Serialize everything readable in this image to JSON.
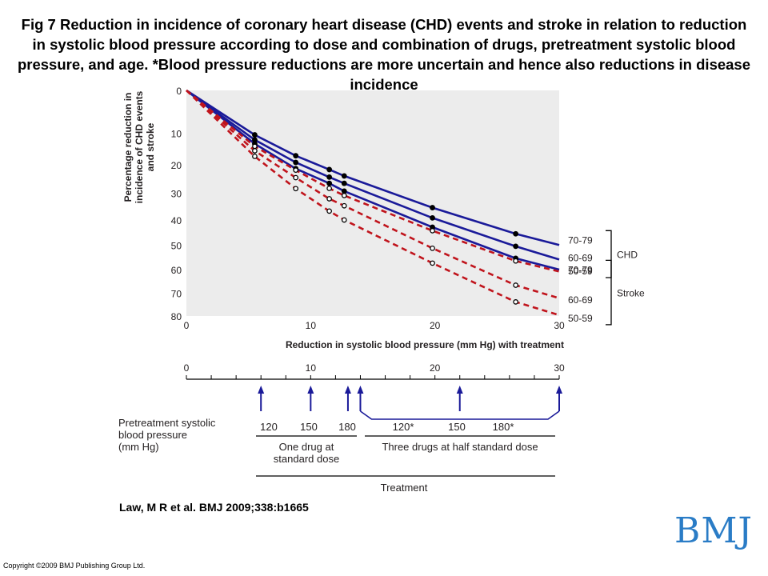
{
  "title": "Fig 7 Reduction in incidence of coronary heart disease (CHD) events and stroke in relation to reduction in systolic blood pressure according to dose and combination of drugs, pretreatment systolic blood pressure, and age. *Blood pressure reductions are more uncertain and hence also reductions in disease incidence",
  "citation": "Law, M R et al. BMJ 2009;338:b1665",
  "copyright": "Copyright ©2009 BMJ Publishing Group Ltd.",
  "logo_text": "BMJ",
  "colors": {
    "chd": "#1a1a99",
    "stroke": "#c0141c",
    "text": "#231f20",
    "logo": "#2a7cc6"
  },
  "chart_data": {
    "type": "line",
    "xlabel": "Reduction in systolic blood pressure (mm Hg) with treatment",
    "ylabel": [
      "Percentage reduction in",
      "incidence of CHD events",
      "and stroke"
    ],
    "xlim": [
      0,
      30
    ],
    "ylim": [
      0,
      80
    ],
    "x_ticks": [
      0,
      10,
      20,
      30
    ],
    "y_ticks": [
      0,
      10,
      20,
      30,
      40,
      50,
      60,
      70,
      80
    ],
    "x_markers": [
      5.5,
      8.8,
      11.5,
      12.7,
      19.8,
      26.5
    ],
    "series": [
      {
        "name": "CHD 70-79",
        "group": "CHD",
        "style": "solid",
        "x": [
          0,
          5.5,
          8.8,
          11.5,
          12.7,
          19.8,
          26.5,
          30
        ],
        "y": [
          0,
          10.5,
          17,
          21.6,
          23.8,
          35.3,
          45.4,
          49.9
        ]
      },
      {
        "name": "CHD 60-69",
        "group": "CHD",
        "style": "solid",
        "x": [
          0,
          5.5,
          8.8,
          11.5,
          12.7,
          19.8,
          26.5,
          30
        ],
        "y": [
          0,
          12,
          19.2,
          24.2,
          26.4,
          39.2,
          50.4,
          55.8
        ]
      },
      {
        "name": "CHD 50-59",
        "group": "CHD",
        "style": "solid",
        "x": [
          0,
          5.5,
          8.8,
          11.5,
          12.7,
          19.8,
          26.5,
          30
        ],
        "y": [
          0,
          13.2,
          21.3,
          26.4,
          29.2,
          42.8,
          55.3,
          60
        ]
      },
      {
        "name": "Stroke 70-79",
        "group": "Stroke",
        "style": "dashed",
        "x": [
          0,
          5.5,
          8.8,
          11.5,
          12.7,
          19.8,
          26.5,
          30
        ],
        "y": [
          0,
          14,
          21.8,
          28.2,
          30.8,
          44.2,
          56.4,
          60.8
        ]
      },
      {
        "name": "Stroke 60-69",
        "group": "Stroke",
        "style": "dashed",
        "x": [
          0,
          5.5,
          8.8,
          11.5,
          12.7,
          19.8,
          26.5,
          30
        ],
        "y": [
          0,
          15.4,
          24.4,
          32,
          34.6,
          51.2,
          66.6,
          72.2
        ]
      },
      {
        "name": "Stroke 50-59",
        "group": "Stroke",
        "style": "dashed",
        "x": [
          0,
          5.5,
          8.8,
          11.5,
          12.7,
          19.8,
          26.5,
          30
        ],
        "y": [
          0,
          17.2,
          28.3,
          36.6,
          40,
          57.3,
          73.8,
          79.6
        ]
      }
    ],
    "legend": {
      "groups": [
        {
          "name": "CHD",
          "labels": [
            "70-79",
            "60-69",
            "50-59"
          ]
        },
        {
          "name": "Stroke",
          "labels": [
            "70-79",
            "60-69",
            "50-59"
          ]
        }
      ]
    },
    "lower_axis": {
      "ticks": [
        0,
        10,
        20,
        30
      ],
      "arrows": [
        {
          "x": 6,
          "label": "120"
        },
        {
          "x": 10,
          "label": "150"
        },
        {
          "x": 13,
          "label": "180"
        },
        {
          "x": 14,
          "label": "120*"
        },
        {
          "x": 22,
          "label": "150"
        },
        {
          "x": 30,
          "label": "180*"
        }
      ]
    },
    "pretreatment_label": [
      "Pretreatment systolic",
      "blood pressure",
      "(mm Hg)"
    ],
    "treatment_groups": [
      {
        "label": [
          "One drug at",
          "standard dose"
        ]
      },
      {
        "label": [
          "Three drugs at half standard dose"
        ]
      }
    ],
    "treatment_label": "Treatment"
  }
}
